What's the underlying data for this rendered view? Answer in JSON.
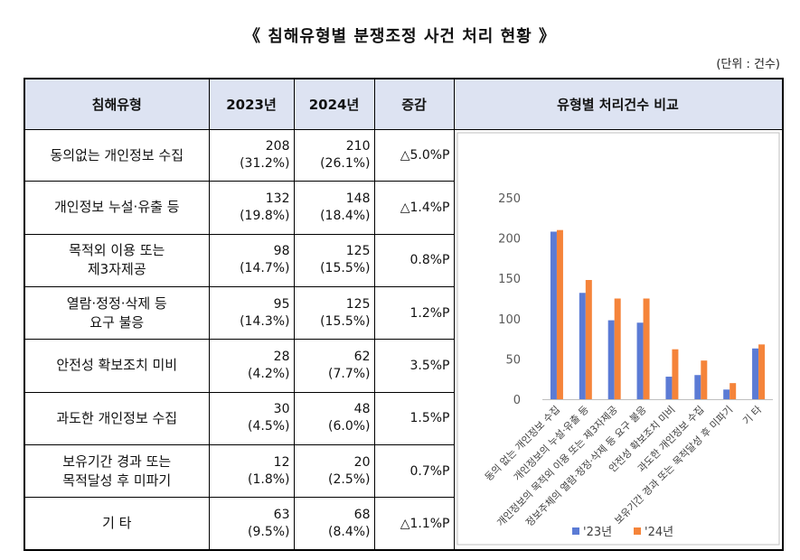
{
  "title": "《 침해유형별 분쟁조정 사건 처리 현황 》",
  "unit": "(단위 : 건수)",
  "headers": {
    "type": "침해유형",
    "y2023": "2023년",
    "y2024": "2024년",
    "change": "증감",
    "chart": "유형별 처리건수 비교"
  },
  "rows": [
    {
      "type_l1": "동의없는 개인정보 수집",
      "type_l2": "",
      "v2023": "208",
      "p2023": "(31.2%)",
      "v2024": "210",
      "p2024": "(26.1%)",
      "change": "△5.0%P"
    },
    {
      "type_l1": "개인정보 누설·유출 등",
      "type_l2": "",
      "v2023": "132",
      "p2023": "(19.8%)",
      "v2024": "148",
      "p2024": "(18.4%)",
      "change": "△1.4%P"
    },
    {
      "type_l1": "목적외 이용 또는",
      "type_l2": "제3자제공",
      "v2023": "98",
      "p2023": "(14.7%)",
      "v2024": "125",
      "p2024": "(15.5%)",
      "change": "0.8%P"
    },
    {
      "type_l1": "열람·정정·삭제 등",
      "type_l2": "요구 불응",
      "v2023": "95",
      "p2023": "(14.3%)",
      "v2024": "125",
      "p2024": "(15.5%)",
      "change": "1.2%P"
    },
    {
      "type_l1": "안전성 확보조치 미비",
      "type_l2": "",
      "v2023": "28",
      "p2023": "(4.2%)",
      "v2024": "62",
      "p2024": "(7.7%)",
      "change": "3.5%P"
    },
    {
      "type_l1": "과도한 개인정보 수집",
      "type_l2": "",
      "v2023": "30",
      "p2023": "(4.5%)",
      "v2024": "48",
      "p2024": "(6.0%)",
      "change": "1.5%P"
    },
    {
      "type_l1": "보유기간 경과 또는",
      "type_l2": "목적달성 후 미파기",
      "v2023": "12",
      "p2023": "(1.8%)",
      "v2024": "20",
      "p2024": "(2.5%)",
      "change": "0.7%P"
    },
    {
      "type_l1": "기  타",
      "type_l2": "",
      "v2023": "63",
      "p2023": "(9.5%)",
      "v2024": "68",
      "p2024": "(8.4%)",
      "change": "△1.1%P"
    }
  ],
  "chart_data": {
    "type": "bar",
    "title": "유형별 처리건수 비교",
    "categories": [
      "동의 없는 개인정보 수집",
      "개인정보의 누설·유출 등",
      "개인정보의 목적외 이용 또는 제3자제공",
      "정보주체의 열람·정정·삭제 등 요구 불응",
      "안전성 확보조치 미비",
      "과도한 개인정보 수집",
      "보유기간 경과 또는 목적달성 후 미파기",
      "기 타"
    ],
    "series": [
      {
        "name": "'23년",
        "values": [
          208,
          132,
          98,
          95,
          28,
          30,
          12,
          63
        ],
        "color": "#5b7bd5"
      },
      {
        "name": "'24년",
        "values": [
          210,
          148,
          125,
          125,
          62,
          48,
          20,
          68
        ],
        "color": "#f5843a"
      }
    ],
    "ylim": [
      0,
      250
    ],
    "yticks": [
      0,
      50,
      100,
      150,
      200,
      250
    ],
    "legend": "bottom",
    "grid": false
  }
}
